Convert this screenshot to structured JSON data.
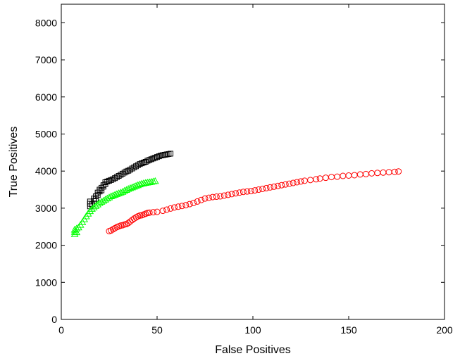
{
  "chart_data": {
    "type": "scatter",
    "xlabel": "False Positives",
    "ylabel": "True Positives",
    "xlim": [
      0,
      200
    ],
    "ylim": [
      0,
      8500
    ],
    "xticks": [
      0,
      50,
      100,
      150,
      200
    ],
    "yticks": [
      0,
      1000,
      2000,
      3000,
      4000,
      5000,
      6000,
      7000,
      8000
    ],
    "grid": false,
    "series": [
      {
        "marker": "square",
        "color": "#000000",
        "points": [
          [
            15,
            3050
          ],
          [
            15,
            3120
          ],
          [
            15,
            3180
          ],
          [
            16,
            3100
          ],
          [
            17,
            3200
          ],
          [
            17,
            3260
          ],
          [
            18,
            3250
          ],
          [
            18,
            3320
          ],
          [
            19,
            3350
          ],
          [
            19,
            3420
          ],
          [
            20,
            3450
          ],
          [
            20,
            3500
          ],
          [
            21,
            3480
          ],
          [
            21,
            3550
          ],
          [
            22,
            3580
          ],
          [
            22,
            3620
          ],
          [
            23,
            3650
          ],
          [
            23,
            3700
          ],
          [
            24,
            3720
          ],
          [
            25,
            3740
          ],
          [
            26,
            3760
          ],
          [
            27,
            3780
          ],
          [
            28,
            3810
          ],
          [
            29,
            3840
          ],
          [
            30,
            3870
          ],
          [
            31,
            3900
          ],
          [
            32,
            3930
          ],
          [
            33,
            3960
          ],
          [
            34,
            3990
          ],
          [
            35,
            4010
          ],
          [
            36,
            4040
          ],
          [
            37,
            4070
          ],
          [
            38,
            4100
          ],
          [
            39,
            4130
          ],
          [
            40,
            4160
          ],
          [
            41,
            4190
          ],
          [
            42,
            4210
          ],
          [
            43,
            4230
          ],
          [
            44,
            4250
          ],
          [
            45,
            4280
          ],
          [
            46,
            4300
          ],
          [
            47,
            4320
          ],
          [
            48,
            4340
          ],
          [
            49,
            4360
          ],
          [
            50,
            4380
          ],
          [
            51,
            4400
          ],
          [
            52,
            4420
          ],
          [
            53,
            4430
          ],
          [
            54,
            4440
          ],
          [
            55,
            4450
          ],
          [
            56,
            4460
          ],
          [
            57,
            4470
          ]
        ]
      },
      {
        "marker": "triangle",
        "color": "#00ff00",
        "points": [
          [
            7,
            2300
          ],
          [
            7,
            2360
          ],
          [
            7,
            2420
          ],
          [
            8,
            2350
          ],
          [
            8,
            2450
          ],
          [
            9,
            2480
          ],
          [
            10,
            2550
          ],
          [
            11,
            2620
          ],
          [
            12,
            2700
          ],
          [
            13,
            2780
          ],
          [
            14,
            2850
          ],
          [
            15,
            2920
          ],
          [
            16,
            2980
          ],
          [
            17,
            3020
          ],
          [
            18,
            3060
          ],
          [
            19,
            3100
          ],
          [
            20,
            3140
          ],
          [
            21,
            3170
          ],
          [
            22,
            3200
          ],
          [
            23,
            3230
          ],
          [
            24,
            3260
          ],
          [
            25,
            3290
          ],
          [
            26,
            3320
          ],
          [
            27,
            3340
          ],
          [
            28,
            3360
          ],
          [
            29,
            3380
          ],
          [
            30,
            3400
          ],
          [
            31,
            3420
          ],
          [
            32,
            3440
          ],
          [
            33,
            3470
          ],
          [
            34,
            3490
          ],
          [
            35,
            3520
          ],
          [
            36,
            3540
          ],
          [
            37,
            3560
          ],
          [
            38,
            3580
          ],
          [
            39,
            3600
          ],
          [
            40,
            3620
          ],
          [
            41,
            3640
          ],
          [
            42,
            3660
          ],
          [
            43,
            3670
          ],
          [
            44,
            3680
          ],
          [
            45,
            3690
          ],
          [
            46,
            3700
          ],
          [
            47,
            3710
          ],
          [
            48,
            3720
          ],
          [
            49,
            3730
          ]
        ]
      },
      {
        "marker": "circle",
        "color": "#ff0000",
        "points": [
          [
            25,
            2380
          ],
          [
            26,
            2400
          ],
          [
            27,
            2430
          ],
          [
            28,
            2460
          ],
          [
            29,
            2490
          ],
          [
            30,
            2510
          ],
          [
            31,
            2530
          ],
          [
            32,
            2540
          ],
          [
            33,
            2560
          ],
          [
            34,
            2570
          ],
          [
            35,
            2600
          ],
          [
            36,
            2640
          ],
          [
            37,
            2680
          ],
          [
            38,
            2720
          ],
          [
            39,
            2750
          ],
          [
            40,
            2780
          ],
          [
            41,
            2800
          ],
          [
            42,
            2810
          ],
          [
            43,
            2830
          ],
          [
            44,
            2850
          ],
          [
            45,
            2870
          ],
          [
            46,
            2880
          ],
          [
            48,
            2890
          ],
          [
            50,
            2900
          ],
          [
            53,
            2930
          ],
          [
            55,
            2960
          ],
          [
            57,
            2990
          ],
          [
            59,
            3020
          ],
          [
            61,
            3040
          ],
          [
            63,
            3060
          ],
          [
            65,
            3080
          ],
          [
            67,
            3110
          ],
          [
            69,
            3140
          ],
          [
            71,
            3180
          ],
          [
            73,
            3220
          ],
          [
            75,
            3260
          ],
          [
            77,
            3280
          ],
          [
            79,
            3300
          ],
          [
            81,
            3310
          ],
          [
            83,
            3320
          ],
          [
            85,
            3340
          ],
          [
            87,
            3360
          ],
          [
            89,
            3380
          ],
          [
            91,
            3400
          ],
          [
            93,
            3420
          ],
          [
            95,
            3440
          ],
          [
            97,
            3450
          ],
          [
            99,
            3460
          ],
          [
            101,
            3480
          ],
          [
            103,
            3500
          ],
          [
            105,
            3520
          ],
          [
            107,
            3540
          ],
          [
            109,
            3560
          ],
          [
            111,
            3580
          ],
          [
            113,
            3600
          ],
          [
            115,
            3620
          ],
          [
            117,
            3640
          ],
          [
            119,
            3660
          ],
          [
            121,
            3680
          ],
          [
            123,
            3700
          ],
          [
            125,
            3720
          ],
          [
            127,
            3740
          ],
          [
            130,
            3760
          ],
          [
            133,
            3780
          ],
          [
            135,
            3800
          ],
          [
            138,
            3820
          ],
          [
            141,
            3840
          ],
          [
            144,
            3850
          ],
          [
            147,
            3870
          ],
          [
            150,
            3880
          ],
          [
            153,
            3890
          ],
          [
            156,
            3910
          ],
          [
            159,
            3920
          ],
          [
            162,
            3940
          ],
          [
            165,
            3950
          ],
          [
            168,
            3960
          ],
          [
            171,
            3970
          ],
          [
            174,
            3980
          ],
          [
            176,
            3990
          ]
        ]
      }
    ]
  }
}
